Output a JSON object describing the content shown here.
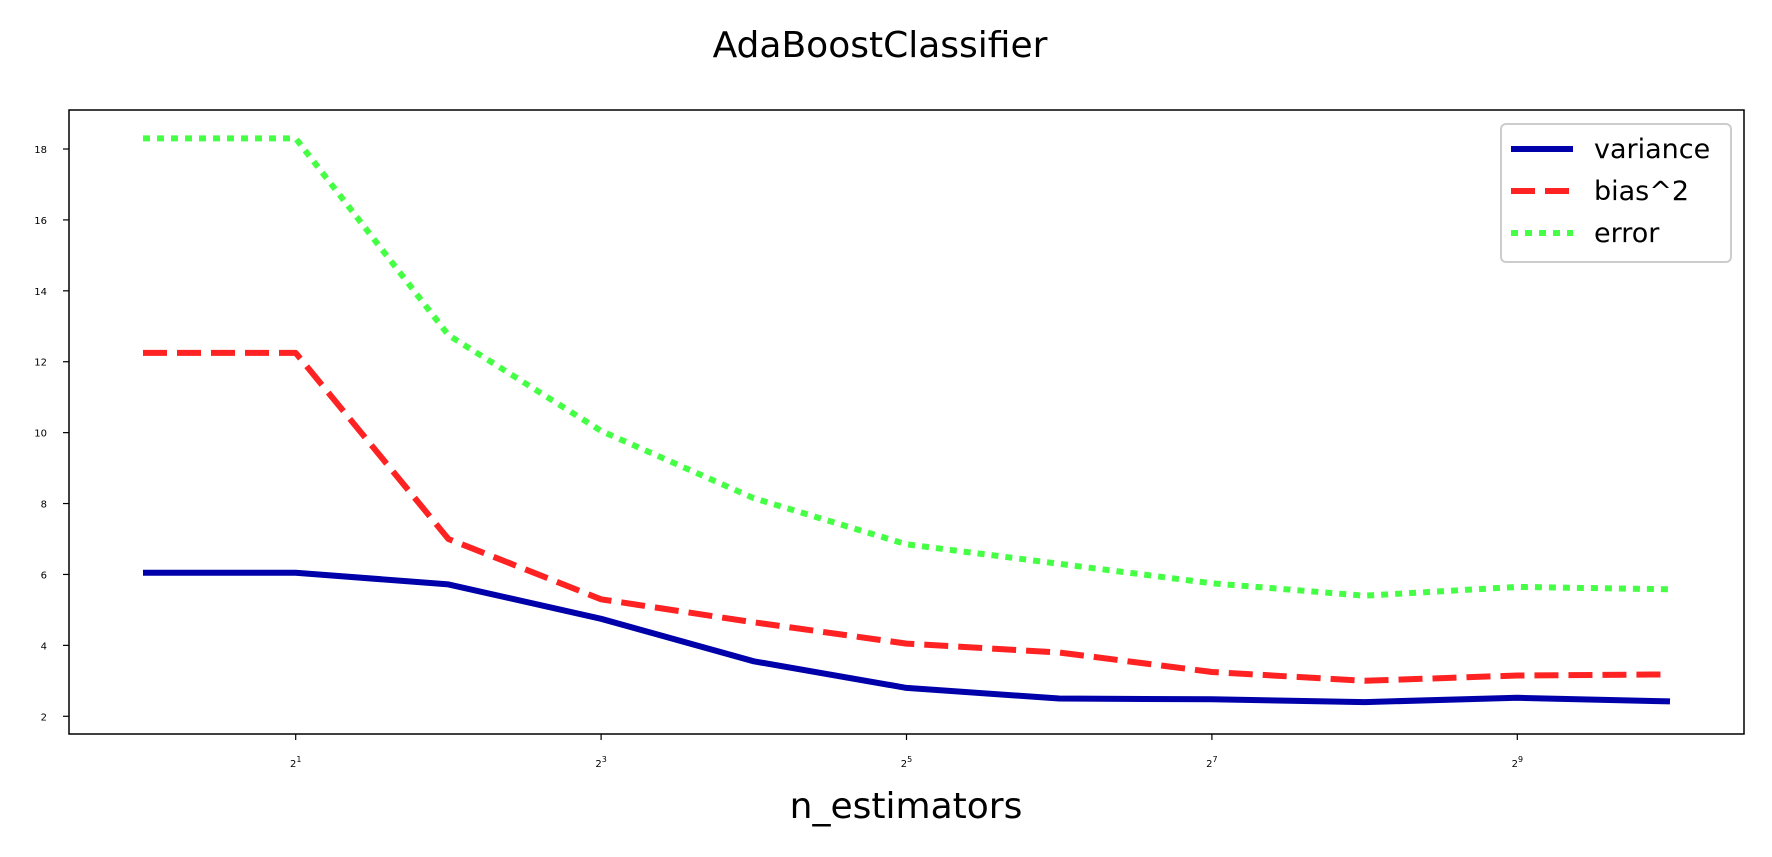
{
  "chart_data": {
    "type": "line",
    "title": "AdaBoostClassifier",
    "xlabel": "n_estimators",
    "ylabel": "",
    "x_scale": "log2",
    "x": [
      1,
      2,
      4,
      8,
      16,
      32,
      64,
      128,
      256,
      512,
      1024
    ],
    "x_ticks": [
      {
        "base": "2",
        "exp": "1",
        "value": 2
      },
      {
        "base": "2",
        "exp": "3",
        "value": 8
      },
      {
        "base": "2",
        "exp": "5",
        "value": 32
      },
      {
        "base": "2",
        "exp": "7",
        "value": 128
      },
      {
        "base": "2",
        "exp": "9",
        "value": 512
      }
    ],
    "y_ticks": [
      2,
      4,
      6,
      8,
      10,
      12,
      14,
      16,
      18
    ],
    "ylim": [
      1.5,
      19.1
    ],
    "grid": false,
    "legend_position": "top-right",
    "series": [
      {
        "name": "variance",
        "color": "#0000AA",
        "style": "solid",
        "values": [
          6.05,
          6.05,
          5.72,
          4.75,
          3.55,
          2.8,
          2.5,
          2.48,
          2.4,
          2.52,
          2.42
        ]
      },
      {
        "name": "bias^2",
        "color": "#FF2222",
        "style": "dashed",
        "values": [
          12.25,
          12.25,
          7.0,
          5.3,
          4.65,
          4.05,
          3.8,
          3.25,
          3.0,
          3.15,
          3.18
        ]
      },
      {
        "name": "error",
        "color": "#44FF44",
        "style": "dotted",
        "values": [
          18.3,
          18.3,
          12.75,
          10.05,
          8.15,
          6.85,
          6.3,
          5.75,
          5.4,
          5.65,
          5.58
        ]
      }
    ]
  }
}
